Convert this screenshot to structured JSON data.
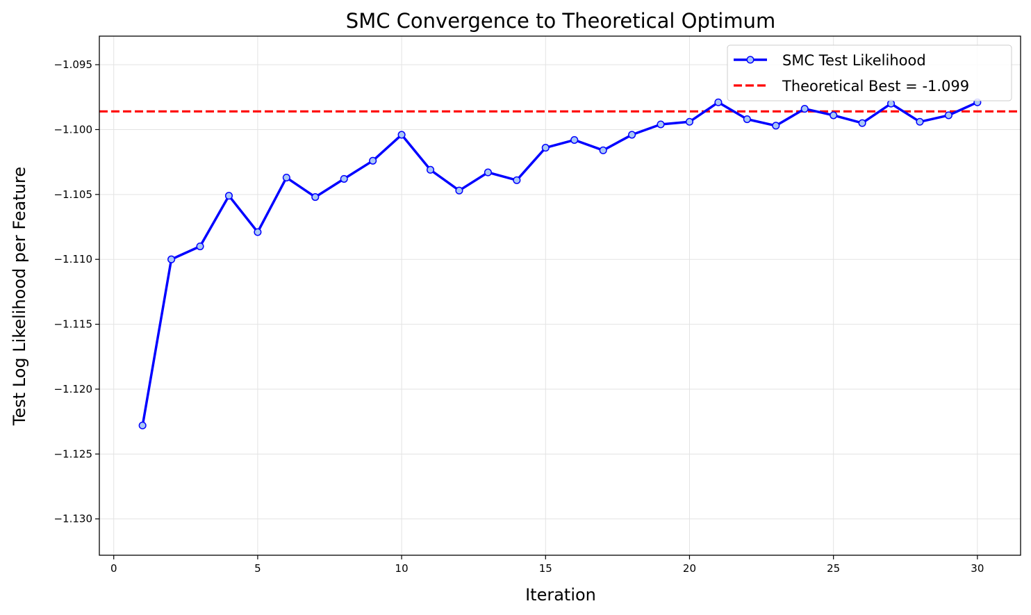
{
  "chart_data": {
    "type": "line",
    "title": "SMC Convergence to Theoretical Optimum",
    "xlabel": "Iteration",
    "ylabel": "Test Log Likelihood per Feature",
    "xlim": [
      -0.5,
      31.5
    ],
    "ylim": [
      -1.1328,
      -1.0928
    ],
    "x_ticks": [
      0,
      5,
      10,
      15,
      20,
      25,
      30
    ],
    "x_tick_labels": [
      "0",
      "5",
      "10",
      "15",
      "20",
      "25",
      "30"
    ],
    "y_ticks": [
      -1.095,
      -1.1,
      -1.105,
      -1.11,
      -1.115,
      -1.12,
      -1.125,
      -1.13
    ],
    "y_tick_labels": [
      "−1.095",
      "−1.100",
      "−1.105",
      "−1.110",
      "−1.115",
      "−1.120",
      "−1.125",
      "−1.130"
    ],
    "grid": true,
    "legend_position": "top-right",
    "series": [
      {
        "name": "SMC Test Likelihood",
        "color": "#0000ff",
        "marker_fill": "#a9c8f5",
        "x": [
          1,
          2,
          3,
          4,
          5,
          6,
          7,
          8,
          9,
          10,
          11,
          12,
          13,
          14,
          15,
          16,
          17,
          18,
          19,
          20,
          21,
          22,
          23,
          24,
          25,
          26,
          27,
          28,
          29,
          30
        ],
        "values": [
          -1.1228,
          -1.11,
          -1.109,
          -1.1051,
          -1.1079,
          -1.1037,
          -1.1052,
          -1.1038,
          -1.1024,
          -1.1004,
          -1.1031,
          -1.1047,
          -1.1033,
          -1.1039,
          -1.1014,
          -1.1008,
          -1.1016,
          -1.1004,
          -1.0996,
          -1.0994,
          -1.0979,
          -1.0992,
          -1.0997,
          -1.0984,
          -1.0989,
          -1.0995,
          -1.098,
          -1.0994,
          -1.0989,
          -1.0979
        ]
      }
    ],
    "reference_lines": [
      {
        "name": "Theoretical Best = -1.099",
        "y": -1.0986,
        "color": "#ff0000",
        "style": "dashed"
      }
    ]
  }
}
